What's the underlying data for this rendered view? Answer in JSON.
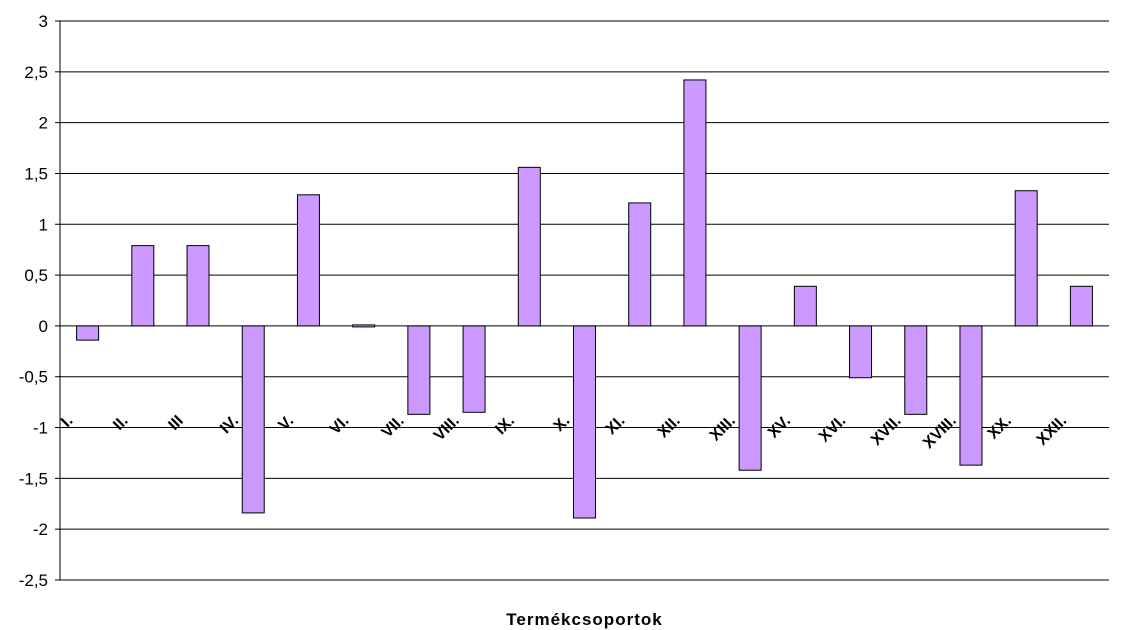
{
  "chart_data": {
    "type": "bar",
    "title": "",
    "xlabel": "Termékcsoportok",
    "ylabel": "",
    "ylim": [
      -2.5,
      3
    ],
    "yticks": [
      3,
      2.5,
      2,
      1.5,
      1,
      0.5,
      0,
      -0.5,
      -1,
      -1.5,
      -2,
      -2.5
    ],
    "ytick_labels": [
      "3",
      "2,5",
      "2",
      "1,5",
      "1",
      "0,5",
      "0",
      "-0,5",
      "-1",
      "-1,5",
      "-2",
      "-2,5"
    ],
    "grid": true,
    "legend": "none",
    "categories": [
      "I.",
      "II.",
      "III",
      "IV.",
      "V.",
      "VI.",
      "VII.",
      "VIII.",
      "IX.",
      "X.",
      "XI.",
      "XII.",
      "XIII.",
      "XV.",
      "XVI.",
      "XVII.",
      "XVIII.",
      "XX.",
      "XXII."
    ],
    "values": [
      -0.14,
      0.79,
      0.79,
      -1.84,
      1.29,
      0.01,
      -0.87,
      -0.85,
      1.56,
      -1.89,
      1.21,
      2.42,
      -1.42,
      0.39,
      -0.51,
      -0.87,
      -1.37,
      1.33,
      0.39
    ],
    "colors": {
      "bar_fill": "#cc99ff",
      "bar_stroke": "#000000",
      "grid": "#000000",
      "background": "#ffffff"
    }
  }
}
